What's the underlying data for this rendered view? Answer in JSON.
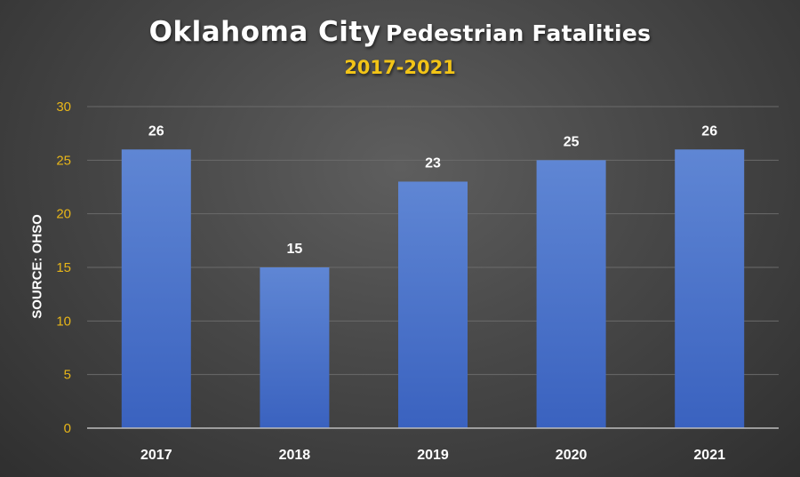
{
  "chart_data": {
    "type": "bar",
    "title_main": "Oklahoma City",
    "title_rest": "Pedestrian Fatalities",
    "subtitle": "2017-2021",
    "ylabel": "SOURCE: OHSO",
    "categories": [
      "2017",
      "2018",
      "2019",
      "2020",
      "2021"
    ],
    "values": [
      26,
      15,
      23,
      25,
      26
    ],
    "data_labels": [
      "26",
      "15",
      "23",
      "25",
      "26"
    ],
    "ylim": [
      0,
      30
    ],
    "yticks": [
      0,
      5,
      10,
      15,
      20,
      25,
      30
    ],
    "ytick_labels": [
      "0",
      "5",
      "10",
      "15",
      "20",
      "25",
      "30"
    ],
    "grid": true,
    "legend": "none"
  },
  "colors": {
    "subtitle": "#f2c417",
    "tick_labels": "#e8b619",
    "bar_top": "#5f86d4",
    "bar_bottom": "#3a62bf",
    "gridline": "#6a6a6a",
    "axis_line": "#bdbdbd"
  }
}
